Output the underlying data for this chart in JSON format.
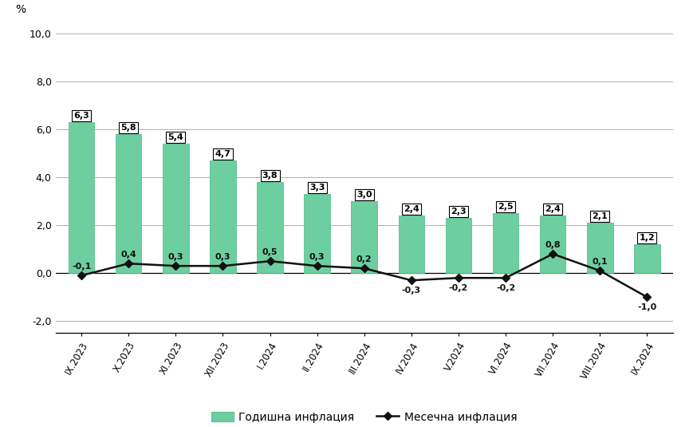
{
  "categories": [
    "IX.2023",
    "X.2023",
    "XI.2023",
    "XII.2023",
    "I.2024",
    "II.2024",
    "III.2024",
    "IV.2024",
    "V.2024",
    "VI.2024",
    "VII.2024",
    "VIII.2024",
    "IX.2024"
  ],
  "annual_inflation": [
    6.3,
    5.8,
    5.4,
    4.7,
    3.8,
    3.3,
    3.0,
    2.4,
    2.3,
    2.5,
    2.4,
    2.1,
    1.2
  ],
  "monthly_inflation": [
    -0.1,
    0.4,
    0.3,
    0.3,
    0.5,
    0.3,
    0.2,
    -0.3,
    -0.2,
    -0.2,
    0.8,
    0.1,
    -1.0
  ],
  "bar_color": "#6DCFA0",
  "bar_edge_color": "#5BBF90",
  "line_color": "#111111",
  "ylim": [
    -2.5,
    10.5
  ],
  "yticks": [
    -2.0,
    0.0,
    2.0,
    4.0,
    6.0,
    8.0,
    10.0
  ],
  "ylabel": "%",
  "annual_label": "Годишна инфлация",
  "monthly_label": "Месечна инфлация",
  "background_color": "#ffffff",
  "grid_color": "#b0b0b0",
  "monthly_label_y_offsets": [
    0.22,
    0.22,
    0.22,
    0.22,
    0.22,
    0.22,
    0.22,
    -0.25,
    -0.25,
    -0.25,
    0.22,
    0.22,
    -0.25
  ]
}
